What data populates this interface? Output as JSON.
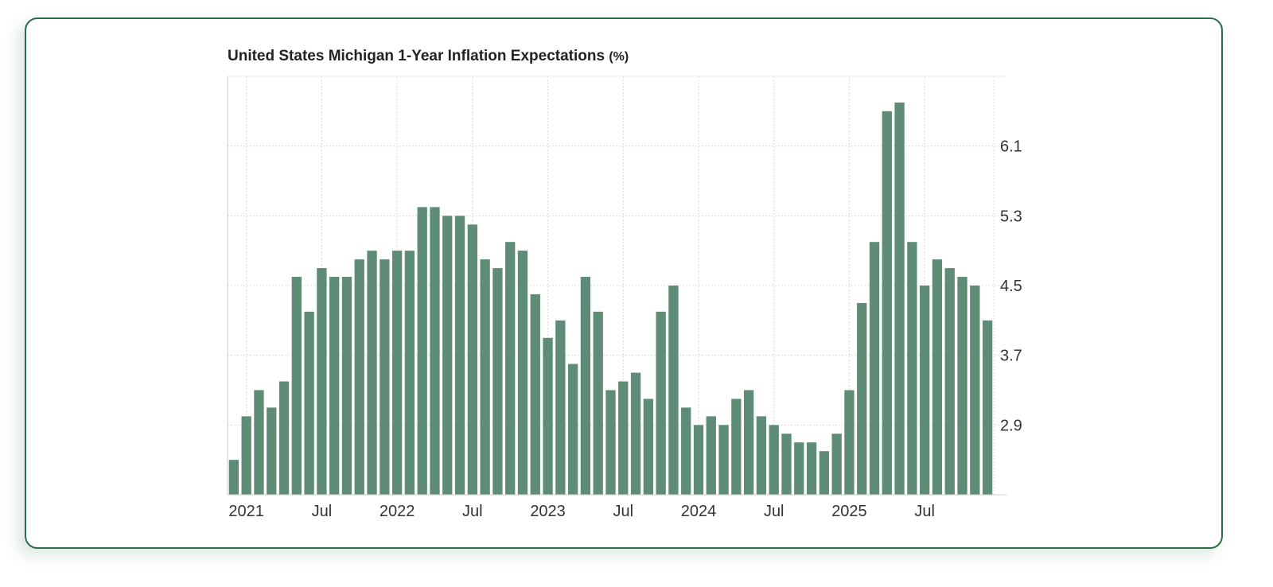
{
  "chart_data": {
    "type": "bar",
    "title": "United States Michigan 1-Year Inflation Expectations",
    "unit": "(%)",
    "xlabel": "",
    "ylabel": "",
    "ylim": [
      2.1,
      6.9
    ],
    "grid": true,
    "y_axis_side": "right",
    "y_ticks": [
      "2.9",
      "3.7",
      "4.5",
      "5.3",
      "6.1"
    ],
    "x_ticks": [
      {
        "label": "2021",
        "index": 0
      },
      {
        "label": "Jul",
        "index": 6
      },
      {
        "label": "2022",
        "index": 12
      },
      {
        "label": "Jul",
        "index": 18
      },
      {
        "label": "2023",
        "index": 24
      },
      {
        "label": "Jul",
        "index": 30
      },
      {
        "label": "2024",
        "index": 36
      },
      {
        "label": "Jul",
        "index": 42
      },
      {
        "label": "2025",
        "index": 48
      },
      {
        "label": "Jul",
        "index": 54
      }
    ],
    "categories": [
      "Jan 2021",
      "Feb 2021",
      "Mar 2021",
      "Apr 2021",
      "May 2021",
      "Jun 2021",
      "Jul 2021",
      "Aug 2021",
      "Sep 2021",
      "Oct 2021",
      "Nov 2021",
      "Dec 2021",
      "Jan 2022",
      "Feb 2022",
      "Mar 2022",
      "Apr 2022",
      "May 2022",
      "Jun 2022",
      "Jul 2022",
      "Aug 2022",
      "Sep 2022",
      "Oct 2022",
      "Nov 2022",
      "Dec 2022",
      "Jan 2023",
      "Feb 2023",
      "Mar 2023",
      "Apr 2023",
      "May 2023",
      "Jun 2023",
      "Jul 2023",
      "Aug 2023",
      "Sep 2023",
      "Oct 2023",
      "Nov 2023",
      "Dec 2023",
      "Jan 2024",
      "Feb 2024",
      "Mar 2024",
      "Apr 2024",
      "May 2024",
      "Jun 2024",
      "Jul 2024",
      "Aug 2024",
      "Sep 2024",
      "Oct 2024",
      "Nov 2024",
      "Dec 2024",
      "Jan 2025",
      "Feb 2025",
      "Mar 2025",
      "Apr 2025",
      "May 2025",
      "Jun 2025",
      "Jul 2025",
      "Aug 2025",
      "Sep 2025",
      "Oct 2025",
      "Nov 2025"
    ],
    "values": [
      3.0,
      3.3,
      3.1,
      3.4,
      4.6,
      4.2,
      4.7,
      4.6,
      4.6,
      4.8,
      4.9,
      4.8,
      4.9,
      4.9,
      5.4,
      5.4,
      5.3,
      5.3,
      5.2,
      4.8,
      4.7,
      5.0,
      4.9,
      4.4,
      3.9,
      4.1,
      3.6,
      4.6,
      4.2,
      3.3,
      3.4,
      3.5,
      3.2,
      4.2,
      4.5,
      3.1,
      2.9,
      3.0,
      2.9,
      3.2,
      3.3,
      3.0,
      2.9,
      2.8,
      2.7,
      2.7,
      2.6,
      2.8,
      3.3,
      4.3,
      5.0,
      6.5,
      6.6,
      5.0,
      4.5,
      4.8,
      4.7,
      4.6,
      4.5
    ],
    "values_note": "First and last bars also visible: Dec 2020 2.5 (leftmost) and Dec 2025 4.1 (rightmost)",
    "leading_value": 2.5,
    "trailing_value": 4.1
  },
  "colors": {
    "bar": "#5e8c76",
    "card_border": "#2e6b4a",
    "grid": "#dddddd",
    "axis": "#cccccc",
    "text": "#333333"
  }
}
